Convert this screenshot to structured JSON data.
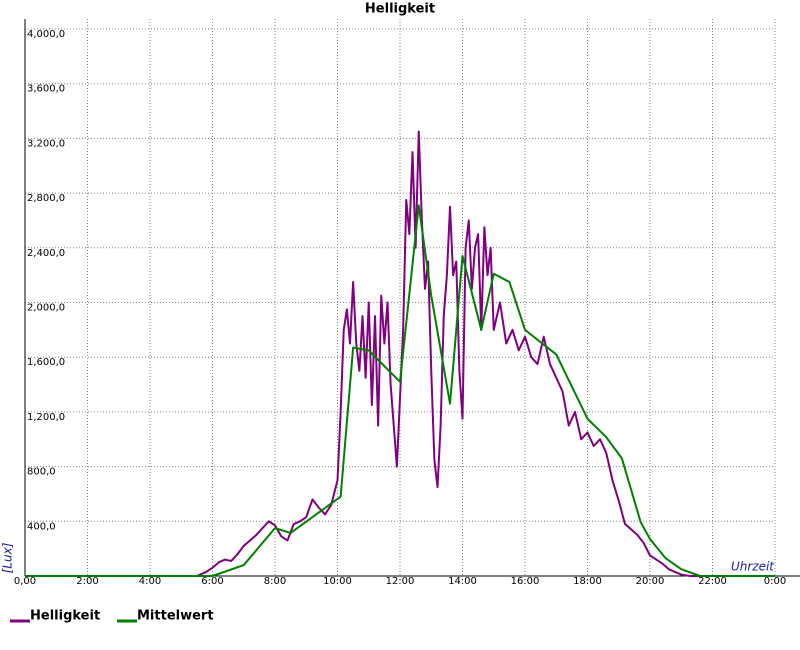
{
  "chart_data": {
    "type": "line",
    "title": "Helligkeit",
    "y_label": "[Lux]",
    "x_label": "Uhrzeit",
    "xlim": [
      0,
      24
    ],
    "xticks": [
      {
        "value": 0,
        "label": "0,00"
      },
      {
        "value": 2,
        "label": "2:00"
      },
      {
        "value": 4,
        "label": "4:00"
      },
      {
        "value": 6,
        "label": "6:00"
      },
      {
        "value": 8,
        "label": "8:00"
      },
      {
        "value": 10,
        "label": "10:00"
      },
      {
        "value": 12,
        "label": "12:00"
      },
      {
        "value": 14,
        "label": "14:00"
      },
      {
        "value": 16,
        "label": "16:00"
      },
      {
        "value": 18,
        "label": "18:00"
      },
      {
        "value": 20,
        "label": "20:00"
      },
      {
        "value": 22,
        "label": "22:00"
      },
      {
        "value": 24,
        "label": "0:00"
      }
    ],
    "ylim": [
      0,
      4000
    ],
    "yticks": [
      {
        "value": 400,
        "label": "400,0"
      },
      {
        "value": 800,
        "label": "800,0"
      },
      {
        "value": 1200,
        "label": "1,200,0"
      },
      {
        "value": 1600,
        "label": "1,600,0"
      },
      {
        "value": 2000,
        "label": "2,000,0"
      },
      {
        "value": 2400,
        "label": "2,400,0"
      },
      {
        "value": 2800,
        "label": "2,800,0"
      },
      {
        "value": 3200,
        "label": "3,200,0"
      },
      {
        "value": 3600,
        "label": "3,600,0"
      },
      {
        "value": 4000,
        "label": "4,000,0"
      }
    ],
    "grid": true,
    "series": [
      {
        "name": "Helligkeit",
        "color": "#800080",
        "x": [
          0,
          5.5,
          5.8,
          6.0,
          6.2,
          6.4,
          6.6,
          6.8,
          7.0,
          7.2,
          7.4,
          7.6,
          7.8,
          8.0,
          8.2,
          8.4,
          8.6,
          8.8,
          9.0,
          9.2,
          9.4,
          9.6,
          9.8,
          10.0,
          10.1,
          10.2,
          10.3,
          10.4,
          10.5,
          10.6,
          10.7,
          10.8,
          10.9,
          11.0,
          11.1,
          11.2,
          11.3,
          11.4,
          11.5,
          11.6,
          11.7,
          11.8,
          11.9,
          12.0,
          12.1,
          12.2,
          12.3,
          12.4,
          12.5,
          12.6,
          12.7,
          12.8,
          12.9,
          13.0,
          13.1,
          13.2,
          13.3,
          13.4,
          13.5,
          13.6,
          13.7,
          13.8,
          13.9,
          14.0,
          14.1,
          14.2,
          14.3,
          14.4,
          14.5,
          14.6,
          14.7,
          14.8,
          14.9,
          15.0,
          15.2,
          15.4,
          15.6,
          15.8,
          16.0,
          16.2,
          16.4,
          16.6,
          16.8,
          17.0,
          17.2,
          17.4,
          17.6,
          17.8,
          18.0,
          18.2,
          18.4,
          18.6,
          18.8,
          19.0,
          19.2,
          19.4,
          19.6,
          19.8,
          20.0,
          20.2,
          20.4,
          20.6,
          20.8,
          21.0,
          21.3,
          24
        ],
        "values": [
          0,
          0,
          30,
          60,
          100,
          120,
          110,
          160,
          220,
          260,
          300,
          350,
          400,
          370,
          290,
          260,
          380,
          400,
          430,
          560,
          500,
          450,
          520,
          700,
          1200,
          1800,
          1950,
          1700,
          2150,
          1700,
          1500,
          1900,
          1450,
          2000,
          1250,
          1900,
          1100,
          2050,
          1700,
          2000,
          1400,
          1100,
          800,
          1300,
          1800,
          2750,
          2500,
          3100,
          2400,
          3250,
          2600,
          2100,
          2300,
          1500,
          850,
          650,
          1100,
          1900,
          2200,
          2700,
          2200,
          2300,
          1500,
          1150,
          2400,
          2600,
          2100,
          2400,
          2500,
          1800,
          2550,
          2200,
          2400,
          1800,
          2000,
          1700,
          1800,
          1650,
          1750,
          1600,
          1550,
          1750,
          1550,
          1450,
          1350,
          1100,
          1200,
          1000,
          1050,
          950,
          1000,
          900,
          700,
          550,
          380,
          340,
          300,
          240,
          150,
          120,
          90,
          50,
          30,
          10,
          0,
          0
        ]
      },
      {
        "name": "Mittelwert",
        "color": "#008000",
        "x": [
          0,
          6.0,
          7.0,
          8.0,
          8.5,
          10.1,
          10.5,
          11.0,
          12.0,
          12.6,
          13.0,
          13.6,
          14.0,
          14.6,
          15.0,
          15.5,
          16.0,
          16.5,
          17.0,
          18.0,
          18.6,
          19.1,
          19.7,
          20.0,
          20.5,
          21.0,
          21.6,
          24
        ],
        "values": [
          0,
          0,
          80,
          350,
          315,
          580,
          1670,
          1650,
          1420,
          2710,
          2050,
          1260,
          2340,
          1800,
          2210,
          2150,
          1800,
          1710,
          1620,
          1150,
          1015,
          860,
          395,
          270,
          130,
          50,
          0,
          0
        ]
      }
    ]
  }
}
